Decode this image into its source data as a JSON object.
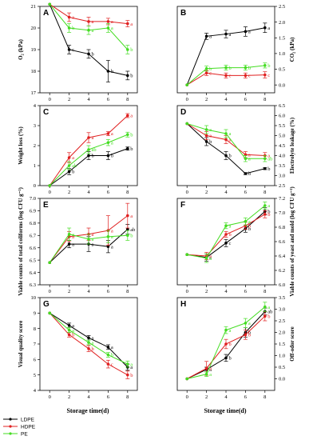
{
  "colors": {
    "LDPE": "#000000",
    "HDPE": "#e02020",
    "PE": "#44dd22"
  },
  "legend": [
    {
      "label": "LDPE",
      "key": "LDPE"
    },
    {
      "label": "HDPE",
      "key": "HDPE"
    },
    {
      "label": "PE",
      "key": "PE"
    }
  ],
  "xlabel": "Storage time(d)",
  "chart_data": [
    {
      "panel": "A",
      "type": "line",
      "ylabel": "O₂ (kPa)",
      "axis_side": "left",
      "x": [
        0,
        2,
        4,
        6,
        8
      ],
      "ylim": [
        17,
        21
      ],
      "yticks": [
        17,
        18,
        19,
        20,
        21
      ],
      "series": [
        {
          "key": "LDPE",
          "values": [
            21.1,
            19.0,
            18.8,
            18.0,
            17.8
          ],
          "errors": [
            0,
            0.2,
            0.2,
            0.5,
            0.2
          ],
          "letters": [
            "",
            "c",
            "b",
            "b",
            "b"
          ]
        },
        {
          "key": "HDPE",
          "values": [
            21.1,
            20.5,
            20.3,
            20.3,
            20.2
          ],
          "errors": [
            0,
            0.2,
            0.2,
            0.15,
            0.15
          ],
          "letters": [
            "",
            "a",
            "a",
            "a",
            "a"
          ]
        },
        {
          "key": "PE",
          "values": [
            21.1,
            20.0,
            19.9,
            20.0,
            19.0
          ],
          "errors": [
            0,
            0.2,
            0.2,
            0.2,
            0.2
          ],
          "letters": [
            "",
            "b",
            "a",
            "a",
            "b"
          ]
        }
      ]
    },
    {
      "panel": "B",
      "type": "line",
      "ylabel": "CO₂ (kPa)",
      "axis_side": "right",
      "x": [
        0,
        2,
        4,
        6,
        8
      ],
      "ylim": [
        -0.25,
        2.5
      ],
      "yticks": [
        0.0,
        0.5,
        1.0,
        1.5,
        2.0,
        2.5
      ],
      "series": [
        {
          "key": "LDPE",
          "values": [
            0,
            1.55,
            1.62,
            1.7,
            1.82
          ],
          "errors": [
            0,
            0.1,
            0.12,
            0.15,
            0.15
          ],
          "letters": [
            "",
            "a",
            "a",
            "a",
            "a"
          ]
        },
        {
          "key": "HDPE",
          "values": [
            0,
            0.38,
            0.3,
            0.3,
            0.32
          ],
          "errors": [
            0,
            0.08,
            0.08,
            0.08,
            0.1
          ],
          "letters": [
            "",
            "c",
            "c",
            "c",
            "c"
          ]
        },
        {
          "key": "PE",
          "values": [
            0,
            0.52,
            0.55,
            0.55,
            0.62
          ],
          "errors": [
            0,
            0.08,
            0.08,
            0.08,
            0.08
          ],
          "letters": [
            "",
            "b",
            "b",
            "b",
            "b"
          ]
        }
      ]
    },
    {
      "panel": "C",
      "type": "line",
      "ylabel": "Weight loss (%)",
      "axis_side": "left",
      "x": [
        0,
        2,
        4,
        6,
        8
      ],
      "ylim": [
        0,
        4
      ],
      "yticks": [
        0,
        1,
        2,
        3,
        4
      ],
      "series": [
        {
          "key": "LDPE",
          "values": [
            0,
            0.7,
            1.5,
            1.5,
            1.85
          ],
          "errors": [
            0,
            0.15,
            0.2,
            0.2,
            0.08
          ],
          "letters": [
            "",
            "b",
            "b",
            "b",
            "b"
          ]
        },
        {
          "key": "HDPE",
          "values": [
            0,
            1.4,
            2.4,
            2.6,
            3.5
          ],
          "errors": [
            0,
            0.25,
            0.25,
            0.1,
            0.1
          ],
          "letters": [
            "",
            "a",
            "a",
            "a",
            "a"
          ]
        },
        {
          "key": "PE",
          "values": [
            0,
            1.0,
            1.8,
            2.15,
            2.55
          ],
          "errors": [
            0,
            0.2,
            0.2,
            0.15,
            0.12
          ],
          "letters": [
            "",
            "ab",
            "ab",
            "a",
            "b"
          ]
        }
      ]
    },
    {
      "panel": "D",
      "type": "line",
      "ylabel": "Electrolyte leakage (%)",
      "axis_side": "right",
      "x": [
        0,
        2,
        4,
        6,
        8
      ],
      "ylim": [
        2.5,
        6.5
      ],
      "yticks": [
        2.5,
        3.0,
        3.5,
        4.0,
        4.5,
        5.0,
        5.5,
        6.0,
        6.5
      ],
      "series": [
        {
          "key": "LDPE",
          "values": [
            5.6,
            4.7,
            4.0,
            3.1,
            3.35
          ],
          "errors": [
            0,
            0.2,
            0.2,
            0.05,
            0.05
          ],
          "letters": [
            "",
            "b",
            "b",
            "b",
            "b"
          ]
        },
        {
          "key": "HDPE",
          "values": [
            5.6,
            5.0,
            4.8,
            4.05,
            4.0
          ],
          "errors": [
            0,
            0.2,
            0.2,
            0.15,
            0.15
          ],
          "letters": [
            "",
            "a",
            "a",
            "a",
            "a"
          ]
        },
        {
          "key": "PE",
          "values": [
            5.6,
            5.3,
            5.1,
            3.85,
            3.85
          ],
          "errors": [
            0,
            0.2,
            0.2,
            0.15,
            0.15
          ],
          "letters": [
            "",
            "a",
            "a",
            "a",
            "ab"
          ]
        }
      ]
    },
    {
      "panel": "E",
      "type": "line",
      "ylabel": "Viable counts of total coliforms (log CFU g⁻¹)",
      "axis_side": "left",
      "x": [
        0,
        2,
        4,
        6,
        8
      ],
      "ylim": [
        6.3,
        7.0
      ],
      "yticks": [
        6.3,
        6.4,
        6.5,
        6.6,
        6.7,
        6.8,
        6.9,
        7.0
      ],
      "series": [
        {
          "key": "LDPE",
          "values": [
            6.48,
            6.63,
            6.63,
            6.61,
            6.75
          ],
          "errors": [
            0,
            0.03,
            0.06,
            0.05,
            0.04
          ],
          "letters": [
            "",
            "a",
            "a",
            "a",
            "ab"
          ]
        },
        {
          "key": "HDPE",
          "values": [
            6.48,
            6.69,
            6.71,
            6.74,
            6.86
          ],
          "errors": [
            0,
            0.04,
            0.05,
            0.12,
            0.1
          ],
          "letters": [
            "",
            "a",
            "a",
            "a",
            "a"
          ]
        },
        {
          "key": "PE",
          "values": [
            6.48,
            6.71,
            6.67,
            6.69,
            6.7
          ],
          "errors": [
            0,
            0.05,
            0.04,
            0.05,
            0.04
          ],
          "letters": [
            "",
            "a",
            "a",
            "a",
            "b"
          ]
        }
      ]
    },
    {
      "panel": "F",
      "type": "line",
      "ylabel": "Viable counts of yeast and mold (log CFU g⁻¹)",
      "axis_side": "right",
      "x": [
        0,
        2,
        4,
        6,
        8
      ],
      "ylim": [
        6.0,
        7.2
      ],
      "yticks": [
        6.0,
        6.2,
        6.4,
        6.6,
        6.8,
        7.0,
        7.2
      ],
      "series": [
        {
          "key": "LDPE",
          "values": [
            6.42,
            6.38,
            6.58,
            6.78,
            7.02
          ],
          "errors": [
            0,
            0.05,
            0.05,
            0.05,
            0.05
          ],
          "letters": [
            "",
            "a",
            "c",
            "b",
            "b"
          ]
        },
        {
          "key": "HDPE",
          "values": [
            6.42,
            6.4,
            6.7,
            6.82,
            6.98
          ],
          "errors": [
            0,
            0.05,
            0.04,
            0.05,
            0.05
          ],
          "letters": [
            "",
            "a",
            "b",
            "b",
            "b"
          ]
        },
        {
          "key": "PE",
          "values": [
            6.42,
            6.37,
            6.82,
            6.88,
            7.1
          ],
          "errors": [
            0,
            0.06,
            0.04,
            0.05,
            0.05
          ],
          "letters": [
            "",
            "a",
            "a",
            "a",
            "a"
          ]
        }
      ]
    },
    {
      "panel": "G",
      "type": "line",
      "ylabel": "Visual quality score",
      "axis_side": "left",
      "x": [
        0,
        2,
        4,
        6,
        8
      ],
      "ylim": [
        4,
        10
      ],
      "yticks": [
        4,
        5,
        6,
        7,
        8,
        9,
        10
      ],
      "series": [
        {
          "key": "LDPE",
          "values": [
            9,
            8.2,
            7.4,
            6.8,
            5.5
          ],
          "errors": [
            0,
            0.15,
            0.15,
            0.15,
            0.2
          ],
          "letters": [
            "",
            "a",
            "a",
            "a",
            "a"
          ]
        },
        {
          "key": "HDPE",
          "values": [
            9,
            7.6,
            6.7,
            5.7,
            5.0
          ],
          "errors": [
            0,
            0.15,
            0.2,
            0.25,
            0.25
          ],
          "letters": [
            "",
            "b",
            "b",
            "c",
            "b"
          ]
        },
        {
          "key": "PE",
          "values": [
            9,
            7.9,
            7.1,
            6.3,
            5.7
          ],
          "errors": [
            0,
            0.15,
            0.15,
            0.15,
            0.2
          ],
          "letters": [
            "",
            "a",
            "a",
            "b",
            "a"
          ]
        }
      ]
    },
    {
      "panel": "H",
      "type": "line",
      "ylabel": "Off-odor score",
      "axis_side": "right",
      "x": [
        0,
        2,
        4,
        6,
        8
      ],
      "ylim": [
        -0.5,
        3.5
      ],
      "yticks": [
        0.0,
        0.5,
        1.0,
        1.5,
        2.0,
        2.5,
        3.0,
        3.5
      ],
      "series": [
        {
          "key": "LDPE",
          "values": [
            0,
            0.4,
            0.9,
            2.0,
            2.9
          ],
          "errors": [
            0,
            0.1,
            0.15,
            0.2,
            0.15
          ],
          "letters": [
            "",
            "a",
            "b",
            "b",
            "ab"
          ]
        },
        {
          "key": "HDPE",
          "values": [
            0,
            0.45,
            1.5,
            1.9,
            2.7
          ],
          "errors": [
            0,
            0.3,
            0.2,
            0.2,
            0.2
          ],
          "letters": [
            "",
            "a",
            "b",
            "b",
            "b"
          ]
        },
        {
          "key": "PE",
          "values": [
            0,
            0.2,
            2.1,
            2.4,
            3.1
          ],
          "errors": [
            0,
            0.1,
            0.15,
            0.2,
            0.2
          ],
          "letters": [
            "",
            "a",
            "a",
            "a",
            "a"
          ]
        }
      ]
    }
  ]
}
